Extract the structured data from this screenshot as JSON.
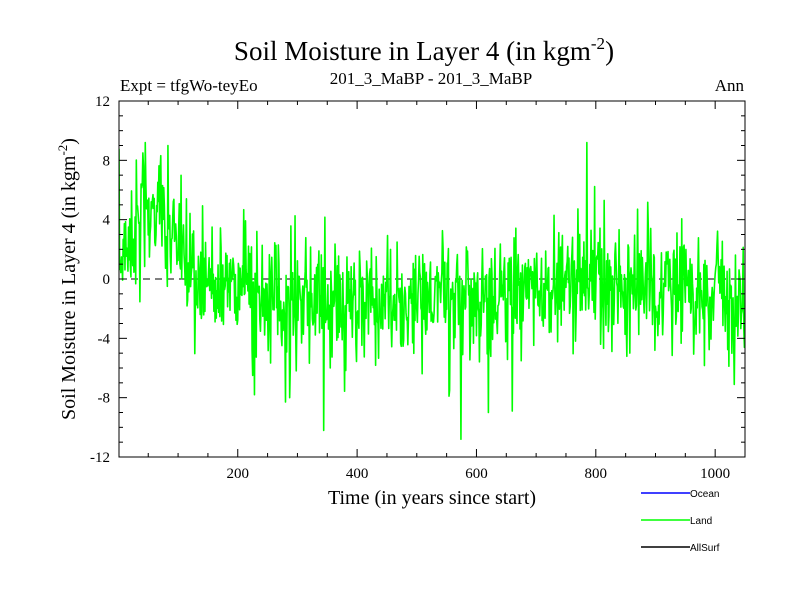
{
  "chart_data": {
    "type": "line",
    "title": "Soil Moisture in Layer 4 (in kgm",
    "title_sup": "-2",
    "title_close": ")",
    "subtitle_left": "Expt = tfgWo-teyEo",
    "subtitle_center": "201_3_MaBP - 201_3_MaBP",
    "subtitle_right": "Ann",
    "xlabel": "Time (in years since start)",
    "ylabel": "Soil Moisture in Layer 4 (in kgm",
    "ylabel_sup": "-2",
    "ylabel_close": ")",
    "xlim": [
      1,
      1050
    ],
    "ylim": [
      -12,
      12
    ],
    "xticks": [
      200,
      400,
      600,
      800,
      1000
    ],
    "xtick_labels": [
      "200",
      "400",
      "600",
      "800",
      "1000"
    ],
    "yticks": [
      -12,
      -8,
      -4,
      0,
      4,
      8,
      12
    ],
    "ytick_labels": [
      "-12",
      "-8",
      "-4",
      "0",
      "4",
      "8",
      "12"
    ],
    "reference_line": 0,
    "series": [
      {
        "name": "Ocean",
        "color": "#0000ff",
        "values": []
      },
      {
        "name": "Land",
        "color": "#00ff00",
        "values": [],
        "generation": {
          "count": 1050,
          "seed": 7,
          "noise_sd": 2.0,
          "spike_scale": 3.5
        }
      },
      {
        "name": "AllSurf",
        "color": "#000000",
        "values": []
      }
    ],
    "land_trend_points": {
      "x": [
        1,
        20,
        40,
        60,
        80,
        100,
        115,
        125,
        150,
        200,
        240,
        280,
        320,
        360,
        400,
        450,
        500,
        540,
        580,
        620,
        660,
        700,
        740,
        780,
        800,
        840,
        880,
        920,
        960,
        1000,
        1030,
        1050
      ],
      "y": [
        1.0,
        3.0,
        4.0,
        4.5,
        3.5,
        2.5,
        1.2,
        0.2,
        0.0,
        -0.5,
        -1.0,
        -1.3,
        -1.5,
        -1.5,
        -1.2,
        -1.6,
        -1.5,
        -1.2,
        -1.5,
        -1.2,
        -0.8,
        -0.6,
        -0.2,
        0.0,
        -0.3,
        -0.5,
        -0.6,
        -0.8,
        -1.0,
        -1.2,
        -1.8,
        -2.5
      ]
    },
    "land_extremes": [
      {
        "x": 45,
        "y": 9.2
      },
      {
        "x": 785,
        "y": 9.2
      },
      {
        "x": 574,
        "y": -10.8
      },
      {
        "x": 620,
        "y": -9.0
      },
      {
        "x": 660,
        "y": -8.9
      },
      {
        "x": 287,
        "y": -8.0
      },
      {
        "x": 228,
        "y": -7.8
      },
      {
        "x": 555,
        "y": -7.5
      }
    ],
    "legend": {
      "placement": "bottom-right",
      "entries": [
        {
          "label": "Ocean",
          "color": "#0000ff"
        },
        {
          "label": "Land",
          "color": "#00ff00"
        },
        {
          "label": "AllSurf",
          "color": "#000000"
        }
      ]
    }
  }
}
